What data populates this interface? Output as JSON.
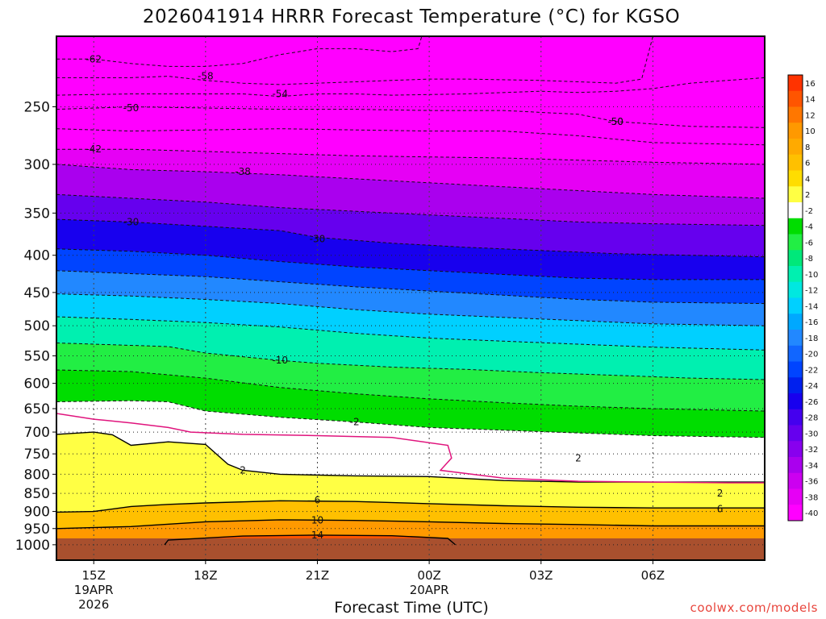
{
  "chart_data": {
    "type": "heatmap",
    "title": "2026041914 HRRR Forecast Temperature (°C) for KGSO",
    "xlabel": "Forecast Time (UTC)",
    "ylabel": "",
    "credit": "coolwx.com/models",
    "x_units": "hours since 2026-04-19 14Z",
    "xlim": [
      0,
      19
    ],
    "y_axis": "pressure (hPa), inverted",
    "ylim": [
      1050,
      200
    ],
    "y_ticks": [
      250,
      300,
      350,
      400,
      450,
      500,
      550,
      600,
      650,
      700,
      750,
      800,
      850,
      900,
      950,
      1000
    ],
    "x_ticks": [
      {
        "x": 1,
        "label": "15Z",
        "sub": [
          "19APR",
          "2026"
        ]
      },
      {
        "x": 4,
        "label": "18Z",
        "sub": []
      },
      {
        "x": 7,
        "label": "21Z",
        "sub": []
      },
      {
        "x": 10,
        "label": "00Z",
        "sub": [
          "20APR"
        ]
      },
      {
        "x": 13,
        "label": "03Z",
        "sub": []
      },
      {
        "x": 16,
        "label": "06Z",
        "sub": []
      }
    ],
    "colorbar": {
      "levels": [
        "16",
        "14",
        "12",
        "10",
        "8",
        "6",
        "4",
        "2",
        "-2",
        "-4",
        "-6",
        "-8",
        "-10",
        "-12",
        "-14",
        "-16",
        "-18",
        "-20",
        "-22",
        "-24",
        "-26",
        "-28",
        "-30",
        "-32",
        "-34",
        "-36",
        "-38",
        "-40"
      ],
      "colors": [
        "#ff3300",
        "#ff5500",
        "#ff7700",
        "#ff9900",
        "#ffaa00",
        "#ffc000",
        "#ffdd00",
        "#ffff44",
        "#ffffff",
        "#00dd00",
        "#22ee44",
        "#00e87a",
        "#00f0b0",
        "#00e8e0",
        "#00d0ff",
        "#00a8ff",
        "#2288ff",
        "#1166ff",
        "#0044ff",
        "#0020ee",
        "#1800ee",
        "#4400ee",
        "#6600ee",
        "#8800ee",
        "#aa00ee",
        "#cc00f0",
        "#e600f5",
        "#ff00ff"
      ]
    },
    "isotherms": [
      {
        "label": "-62",
        "points": [
          [
            0,
            215
          ],
          [
            1,
            215
          ],
          [
            2,
            218
          ],
          [
            3,
            220
          ],
          [
            4,
            220
          ],
          [
            5,
            218
          ],
          [
            6,
            212
          ],
          [
            7,
            208
          ],
          [
            8,
            208
          ],
          [
            9,
            210
          ],
          [
            9.7,
            208
          ],
          [
            9.8,
            200
          ]
        ],
        "label_at": [
          1,
          215
        ]
      },
      {
        "label": "-58",
        "points": [
          [
            0,
            228
          ],
          [
            2,
            228
          ],
          [
            3,
            227
          ],
          [
            4,
            230
          ],
          [
            5,
            232
          ],
          [
            6,
            233
          ],
          [
            7,
            232
          ],
          [
            8,
            231
          ],
          [
            9,
            230
          ],
          [
            10,
            229
          ],
          [
            11,
            229
          ],
          [
            13,
            230
          ],
          [
            15,
            232
          ],
          [
            15.7,
            229
          ],
          [
            16,
            200
          ]
        ],
        "label_at": [
          4,
          227
        ]
      },
      {
        "label": "-54",
        "points": [
          [
            0,
            241
          ],
          [
            2,
            240
          ],
          [
            4,
            240
          ],
          [
            5,
            240
          ],
          [
            6,
            242
          ],
          [
            7,
            240
          ],
          [
            8,
            240
          ],
          [
            9,
            241
          ],
          [
            11,
            240
          ],
          [
            13,
            238
          ],
          [
            14,
            239
          ],
          [
            15,
            238
          ],
          [
            16,
            236
          ],
          [
            17,
            232
          ],
          [
            19,
            228
          ]
        ],
        "label_at": [
          6,
          240
        ]
      },
      {
        "label": "-50",
        "points": [
          [
            0,
            252
          ],
          [
            2,
            250
          ],
          [
            4,
            251
          ],
          [
            6,
            252
          ],
          [
            8,
            252
          ],
          [
            10,
            253
          ],
          [
            12,
            253
          ],
          [
            14,
            256
          ],
          [
            15,
            262
          ],
          [
            17,
            266
          ],
          [
            19,
            267
          ]
        ],
        "label_at": [
          2,
          251
        ],
        "label2_at": [
          15,
          262
        ]
      },
      {
        "label": "-46",
        "points": [
          [
            0,
            268
          ],
          [
            2,
            270
          ],
          [
            4,
            269
          ],
          [
            6,
            268
          ],
          [
            8,
            269
          ],
          [
            10,
            270
          ],
          [
            12,
            270
          ],
          [
            14,
            274
          ],
          [
            16,
            280
          ],
          [
            19,
            282
          ]
        ]
      },
      {
        "label": "-42",
        "points": [
          [
            0,
            286
          ],
          [
            2,
            286
          ],
          [
            4,
            288
          ],
          [
            6,
            290
          ],
          [
            8,
            292
          ],
          [
            10,
            293
          ],
          [
            12,
            294
          ],
          [
            14,
            296
          ],
          [
            16,
            298
          ],
          [
            19,
            300
          ]
        ],
        "label_at": [
          1,
          286
        ]
      },
      {
        "label": "-38",
        "points": [
          [
            0,
            300
          ],
          [
            2,
            305
          ],
          [
            4,
            307
          ],
          [
            6,
            310
          ],
          [
            8,
            314
          ],
          [
            10,
            318
          ],
          [
            12,
            322
          ],
          [
            14,
            326
          ],
          [
            16,
            330
          ],
          [
            19,
            334
          ]
        ],
        "label_at": [
          5,
          307
        ]
      },
      {
        "label": "-34",
        "points": [
          [
            0,
            330
          ],
          [
            2,
            334
          ],
          [
            4,
            338
          ],
          [
            6,
            344
          ],
          [
            8,
            348
          ],
          [
            10,
            352
          ],
          [
            12,
            356
          ],
          [
            14,
            360
          ],
          [
            16,
            362
          ],
          [
            19,
            364
          ]
        ]
      },
      {
        "label": "-30",
        "points": [
          [
            0,
            357
          ],
          [
            2,
            360
          ],
          [
            4,
            365
          ],
          [
            6,
            370
          ],
          [
            7,
            378
          ],
          [
            9,
            385
          ],
          [
            11,
            390
          ],
          [
            13,
            394
          ],
          [
            15,
            398
          ],
          [
            17,
            400
          ],
          [
            19,
            402
          ]
        ],
        "label_at": [
          2,
          360
        ],
        "label2_at": [
          7,
          380
        ]
      },
      {
        "label": "-26",
        "points": [
          [
            0,
            392
          ],
          [
            2,
            395
          ],
          [
            4,
            400
          ],
          [
            6,
            408
          ],
          [
            8,
            415
          ],
          [
            10,
            420
          ],
          [
            12,
            425
          ],
          [
            14,
            430
          ],
          [
            16,
            432
          ],
          [
            19,
            432
          ]
        ]
      },
      {
        "label": "-22",
        "points": [
          [
            0,
            420
          ],
          [
            2,
            424
          ],
          [
            4,
            428
          ],
          [
            6,
            435
          ],
          [
            8,
            442
          ],
          [
            10,
            448
          ],
          [
            12,
            454
          ],
          [
            14,
            460
          ],
          [
            16,
            464
          ],
          [
            19,
            466
          ]
        ]
      },
      {
        "label": "-18",
        "points": [
          [
            0,
            452
          ],
          [
            2,
            455
          ],
          [
            4,
            460
          ],
          [
            6,
            466
          ],
          [
            8,
            475
          ],
          [
            10,
            482
          ],
          [
            12,
            487
          ],
          [
            14,
            492
          ],
          [
            16,
            497
          ],
          [
            19,
            500
          ]
        ]
      },
      {
        "label": "-14",
        "points": [
          [
            0,
            486
          ],
          [
            2,
            490
          ],
          [
            4,
            495
          ],
          [
            6,
            502
          ],
          [
            8,
            512
          ],
          [
            10,
            520
          ],
          [
            12,
            525
          ],
          [
            14,
            530
          ],
          [
            16,
            535
          ],
          [
            19,
            540
          ]
        ]
      },
      {
        "label": "-10",
        "points": [
          [
            0,
            528
          ],
          [
            2,
            532
          ],
          [
            3,
            534
          ],
          [
            4,
            545
          ],
          [
            6,
            558
          ],
          [
            7,
            563
          ],
          [
            9,
            570
          ],
          [
            11,
            574
          ],
          [
            13,
            580
          ],
          [
            15,
            585
          ],
          [
            17,
            590
          ],
          [
            19,
            593
          ]
        ],
        "label_at": [
          6,
          558
        ]
      },
      {
        "label": "-6",
        "points": [
          [
            0,
            575
          ],
          [
            2,
            578
          ],
          [
            4,
            590
          ],
          [
            6,
            608
          ],
          [
            8,
            620
          ],
          [
            10,
            630
          ],
          [
            12,
            638
          ],
          [
            14,
            645
          ],
          [
            16,
            650
          ],
          [
            19,
            655
          ]
        ]
      },
      {
        "label": "-2",
        "points": [
          [
            0,
            636
          ],
          [
            2,
            634
          ],
          [
            3,
            636
          ],
          [
            4,
            655
          ],
          [
            6,
            668
          ],
          [
            8,
            678
          ],
          [
            10,
            690
          ],
          [
            12,
            696
          ],
          [
            14,
            702
          ],
          [
            16,
            708
          ],
          [
            19,
            712
          ]
        ],
        "label_at": [
          8,
          678
        ]
      }
    ],
    "contours_above_zero": [
      {
        "label": "2",
        "points": [
          [
            0,
            705
          ],
          [
            1,
            700
          ],
          [
            1.5,
            706
          ],
          [
            2,
            730
          ],
          [
            3,
            722
          ],
          [
            4,
            728
          ],
          [
            4.6,
            775
          ],
          [
            5,
            790
          ],
          [
            6,
            800
          ],
          [
            8,
            804
          ],
          [
            10,
            806
          ],
          [
            12,
            816
          ],
          [
            14,
            820
          ],
          [
            16,
            820
          ],
          [
            19,
            820
          ]
        ],
        "label_at": [
          5,
          790
        ]
      },
      {
        "label": "6",
        "points": [
          [
            0,
            902
          ],
          [
            1,
            900
          ],
          [
            2,
            886
          ],
          [
            3,
            880
          ],
          [
            4,
            876
          ],
          [
            6,
            870
          ],
          [
            8,
            872
          ],
          [
            10,
            878
          ],
          [
            12,
            884
          ],
          [
            14,
            888
          ],
          [
            16,
            890
          ],
          [
            19,
            890
          ]
        ],
        "label_at": [
          7,
          868
        ]
      },
      {
        "label": "10",
        "points": [
          [
            0,
            950
          ],
          [
            2,
            944
          ],
          [
            4,
            930
          ],
          [
            6,
            924
          ],
          [
            8,
            926
          ],
          [
            10,
            930
          ],
          [
            12,
            935
          ],
          [
            14,
            938
          ],
          [
            16,
            942
          ],
          [
            19,
            942
          ]
        ],
        "label_at": [
          7,
          925
        ]
      },
      {
        "label": "14",
        "points": [
          [
            2.9,
            1000
          ],
          [
            3,
            985
          ],
          [
            5,
            973
          ],
          [
            7,
            970
          ],
          [
            9,
            972
          ],
          [
            10.5,
            980
          ],
          [
            10.7,
            1000
          ]
        ],
        "label_at": [
          7,
          970
        ]
      }
    ],
    "freezing_line": {
      "points": [
        [
          0,
          660
        ],
        [
          1,
          672
        ],
        [
          2,
          680
        ],
        [
          3,
          690
        ],
        [
          3.6,
          700
        ],
        [
          5,
          705
        ],
        [
          7,
          708
        ],
        [
          8,
          710
        ],
        [
          9,
          712
        ],
        [
          10.5,
          730
        ],
        [
          10.6,
          760
        ],
        [
          10.3,
          790
        ],
        [
          12,
          810
        ],
        [
          14,
          818
        ],
        [
          16,
          820
        ],
        [
          18,
          822
        ],
        [
          19,
          822
        ]
      ]
    },
    "freezing_line_color": "#e0147d",
    "ground_color": "#a9502e",
    "labels_right": [
      {
        "label": "-50",
        "at": [
          15,
          262
        ]
      },
      {
        "label": "2",
        "at": [
          14,
          760
        ]
      },
      {
        "label": "2",
        "at": [
          17.8,
          850
        ]
      },
      {
        "label": "6",
        "at": [
          17.8,
          893
        ]
      }
    ]
  }
}
